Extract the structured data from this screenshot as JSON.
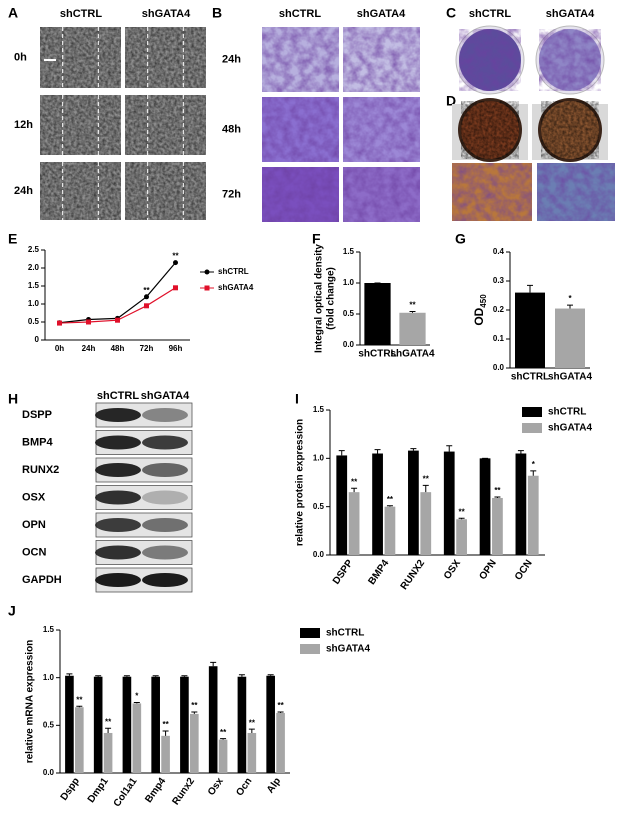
{
  "panels": [
    "A",
    "B",
    "C",
    "D",
    "E",
    "F",
    "G",
    "H",
    "I",
    "J"
  ],
  "scratch": {
    "columns": [
      "shCTRL",
      "shGATA4"
    ],
    "rows": [
      "0h",
      "12h",
      "24h"
    ]
  },
  "transwell": {
    "columns": [
      "shCTRL",
      "shGATA4"
    ],
    "rows": [
      "24h",
      "48h",
      "72h"
    ]
  },
  "staining": {
    "columns": [
      "shCTRL",
      "shGATA4"
    ]
  },
  "chart_data": [
    {
      "type": "line",
      "categories": [
        "0h",
        "24h",
        "48h",
        "72h",
        "96h"
      ],
      "series": [
        {
          "name": "shCTRL",
          "color": "#000000",
          "marker": "circle",
          "values": [
            0.48,
            0.57,
            0.6,
            1.2,
            2.15
          ]
        },
        {
          "name": "shGATA4",
          "color": "#e0102a",
          "marker": "square",
          "values": [
            0.47,
            0.5,
            0.55,
            0.95,
            1.45
          ]
        }
      ],
      "annotations": [
        null,
        null,
        null,
        "**",
        "**"
      ],
      "ylim": [
        0,
        2.5
      ],
      "yticks": [
        0,
        0.5,
        {
          "value": 1,
          "label": "1.0"
        },
        1.5,
        {
          "value": 2,
          "label": "2.0"
        },
        2.5
      ]
    },
    {
      "type": "bar",
      "y_label": [
        "Integral optical density",
        "(fold change)"
      ],
      "categories": [
        "shCTRL",
        "shGATA4"
      ],
      "values": [
        1.0,
        0.52
      ],
      "errors": [
        0,
        0.02
      ],
      "colors": [
        "#000000",
        "#a6a6a6"
      ],
      "annotations": [
        null,
        "**"
      ],
      "ylim": [
        0,
        1.5
      ],
      "yticks": [
        {
          "value": 0,
          "label": "0.0"
        },
        0.5,
        {
          "value": 1,
          "label": "1.0"
        },
        1.5
      ]
    },
    {
      "type": "bar",
      "y_label": [
        "OD"
      ],
      "y_label_subscript": "450",
      "categories": [
        "shCTRL",
        "shGATA4"
      ],
      "values": [
        0.26,
        0.205
      ],
      "errors": [
        0.025,
        0.012
      ],
      "colors": [
        "#000000",
        "#a6a6a6"
      ],
      "annotations": [
        null,
        "*"
      ],
      "ylim": [
        0,
        0.4
      ],
      "yticks": [
        {
          "value": 0,
          "label": "0.0"
        },
        0.1,
        0.2,
        0.3,
        0.4
      ]
    },
    {
      "type": "bar",
      "y_label": [
        "relative protein expression"
      ],
      "categories": [
        "DSPP",
        "BMP4",
        "RUNX2",
        "OSX",
        "OPN",
        "OCN"
      ],
      "series": [
        {
          "name": "shCTRL",
          "color": "#000000",
          "values": [
            1.03,
            1.05,
            1.08,
            1.07,
            1.0,
            1.05
          ],
          "errors": [
            0.05,
            0.04,
            0.02,
            0.06,
            0.0,
            0.03
          ]
        },
        {
          "name": "shGATA4",
          "color": "#a6a6a6",
          "values": [
            0.65,
            0.5,
            0.65,
            0.37,
            0.59,
            0.82
          ],
          "errors": [
            0.04,
            0.01,
            0.07,
            0.01,
            0.01,
            0.05
          ]
        }
      ],
      "annotations": [
        "**",
        "**",
        "**",
        "**",
        "**",
        "*"
      ],
      "ylim": [
        0,
        1.5
      ],
      "yticks": [
        {
          "value": 0,
          "label": "0.0"
        },
        0.5,
        {
          "value": 1,
          "label": "1.0"
        },
        1.5
      ]
    },
    {
      "type": "bar",
      "y_label": [
        "relative mRNA expression"
      ],
      "categories": [
        "Dspp",
        "Dmp1",
        "Col1a1",
        "Bmp4",
        "Runx2",
        "Osx",
        "Ocn",
        "Alp"
      ],
      "series": [
        {
          "name": "shCTRL",
          "color": "#000000",
          "values": [
            1.02,
            1.01,
            1.01,
            1.01,
            1.01,
            1.12,
            1.01,
            1.02
          ],
          "errors": [
            0.02,
            0.01,
            0.01,
            0.01,
            0.01,
            0.04,
            0.02,
            0.01
          ]
        },
        {
          "name": "shGATA4",
          "color": "#a6a6a6",
          "values": [
            0.69,
            0.42,
            0.73,
            0.39,
            0.62,
            0.35,
            0.42,
            0.63
          ],
          "errors": [
            0.01,
            0.05,
            0.01,
            0.05,
            0.02,
            0.01,
            0.04,
            0.01
          ]
        }
      ],
      "annotations": [
        "**",
        "**",
        "*",
        "**",
        "**",
        "**",
        "**",
        "**"
      ],
      "ylim": [
        0,
        1.5
      ],
      "yticks": [
        {
          "value": 0,
          "label": "0.0"
        },
        0.5,
        {
          "value": 1,
          "label": "1.0"
        },
        1.5
      ]
    }
  ],
  "blot": {
    "columns": [
      "shCTRL",
      "shGATA4"
    ],
    "rows": [
      "DSPP",
      "BMP4",
      "RUNX2",
      "OSX",
      "OPN",
      "OCN",
      "GAPDH"
    ]
  }
}
